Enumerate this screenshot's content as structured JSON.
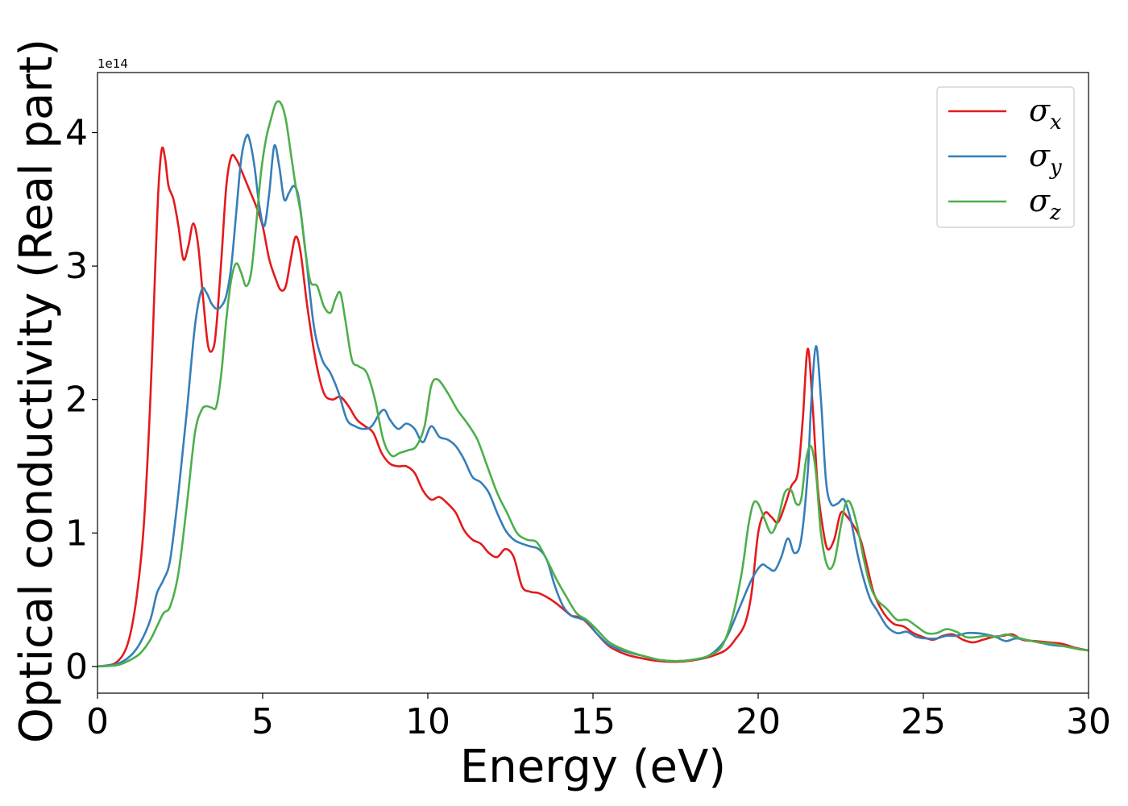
{
  "chart_data": {
    "type": "line",
    "xlabel": "Energy (eV)",
    "ylabel": "Optical conductivity (Real part)",
    "y_offset_label": "1e14",
    "xlim": [
      0,
      30
    ],
    "ylim": [
      -0.2,
      4.45
    ],
    "xticks": [
      0,
      5,
      10,
      15,
      20,
      25,
      30
    ],
    "xtick_labels": [
      "0",
      "5",
      "10",
      "15",
      "20",
      "25",
      "30"
    ],
    "yticks": [
      0,
      1,
      2,
      3,
      4
    ],
    "ytick_labels": [
      "0",
      "1",
      "2",
      "3",
      "4"
    ],
    "grid": false,
    "legend_position": "top-right",
    "series": [
      {
        "name": "σ",
        "subscript": "x",
        "color": "#e41a1c",
        "x": [
          0,
          0.5,
          0.8,
          1.0,
          1.2,
          1.4,
          1.6,
          1.75,
          1.85,
          1.95,
          2.05,
          2.15,
          2.3,
          2.45,
          2.6,
          2.75,
          2.9,
          3.05,
          3.2,
          3.35,
          3.5,
          3.6,
          3.75,
          3.9,
          4.05,
          4.2,
          4.35,
          4.55,
          4.8,
          5.0,
          5.2,
          5.4,
          5.55,
          5.7,
          5.85,
          6.0,
          6.15,
          6.35,
          6.6,
          6.85,
          7.1,
          7.35,
          7.6,
          7.85,
          8.1,
          8.35,
          8.6,
          8.85,
          9.1,
          9.35,
          9.6,
          9.85,
          10.1,
          10.35,
          10.6,
          10.85,
          11.1,
          11.35,
          11.6,
          11.85,
          12.1,
          12.35,
          12.6,
          12.85,
          13.1,
          13.35,
          13.6,
          13.85,
          14.1,
          14.35,
          14.6,
          14.85,
          15.1,
          15.5,
          16,
          16.5,
          17,
          17.5,
          18,
          18.5,
          19,
          19.3,
          19.6,
          19.8,
          20.0,
          20.2,
          20.4,
          20.6,
          20.8,
          21.0,
          21.2,
          21.35,
          21.5,
          21.65,
          21.8,
          21.95,
          22.1,
          22.3,
          22.5,
          22.7,
          22.9,
          23.1,
          23.3,
          23.5,
          23.8,
          24.1,
          24.4,
          24.7,
          25.0,
          25.3,
          25.6,
          25.9,
          26.2,
          26.5,
          26.8,
          27.1,
          27.4,
          27.7,
          28.0,
          28.4,
          28.8,
          29.2,
          29.6,
          30.0
        ],
        "y": [
          0,
          0.02,
          0.1,
          0.25,
          0.55,
          1.05,
          2.0,
          3.0,
          3.6,
          3.88,
          3.8,
          3.6,
          3.5,
          3.3,
          3.05,
          3.15,
          3.32,
          3.15,
          2.75,
          2.4,
          2.38,
          2.55,
          3.05,
          3.6,
          3.82,
          3.8,
          3.72,
          3.6,
          3.45,
          3.3,
          3.05,
          2.9,
          2.82,
          2.85,
          3.05,
          3.22,
          3.1,
          2.7,
          2.3,
          2.05,
          2.0,
          2.02,
          1.95,
          1.85,
          1.8,
          1.75,
          1.6,
          1.52,
          1.5,
          1.5,
          1.45,
          1.32,
          1.25,
          1.27,
          1.22,
          1.15,
          1.02,
          0.95,
          0.92,
          0.85,
          0.82,
          0.88,
          0.82,
          0.6,
          0.56,
          0.55,
          0.52,
          0.48,
          0.43,
          0.38,
          0.37,
          0.32,
          0.25,
          0.15,
          0.09,
          0.06,
          0.04,
          0.035,
          0.045,
          0.07,
          0.12,
          0.2,
          0.32,
          0.55,
          1.0,
          1.15,
          1.12,
          1.08,
          1.2,
          1.35,
          1.45,
          1.85,
          2.38,
          1.95,
          1.35,
          1.05,
          0.88,
          0.95,
          1.15,
          1.12,
          1.05,
          0.95,
          0.75,
          0.55,
          0.4,
          0.32,
          0.3,
          0.25,
          0.22,
          0.2,
          0.23,
          0.24,
          0.2,
          0.18,
          0.2,
          0.22,
          0.23,
          0.24,
          0.2,
          0.19,
          0.18,
          0.17,
          0.14,
          0.12
        ]
      },
      {
        "name": "σ",
        "subscript": "y",
        "color": "#377eb8",
        "x": [
          0,
          0.6,
          1.0,
          1.3,
          1.6,
          1.8,
          2.0,
          2.2,
          2.45,
          2.7,
          2.95,
          3.15,
          3.3,
          3.45,
          3.6,
          3.75,
          3.9,
          4.05,
          4.2,
          4.35,
          4.5,
          4.6,
          4.75,
          4.9,
          5.05,
          5.2,
          5.35,
          5.5,
          5.65,
          5.8,
          5.95,
          6.1,
          6.3,
          6.55,
          6.8,
          7.05,
          7.3,
          7.55,
          7.8,
          8.05,
          8.3,
          8.55,
          8.7,
          8.85,
          9.1,
          9.35,
          9.6,
          9.85,
          10.1,
          10.35,
          10.6,
          10.85,
          11.1,
          11.35,
          11.6,
          11.85,
          12.1,
          12.35,
          12.6,
          12.85,
          13.1,
          13.35,
          13.6,
          13.85,
          14.1,
          14.35,
          14.6,
          14.85,
          15.1,
          15.5,
          16,
          16.5,
          17,
          17.5,
          18,
          18.5,
          19,
          19.4,
          19.8,
          20.1,
          20.3,
          20.5,
          20.7,
          20.9,
          21.1,
          21.3,
          21.5,
          21.6,
          21.75,
          21.9,
          22.05,
          22.2,
          22.4,
          22.6,
          22.8,
          23.0,
          23.2,
          23.4,
          23.6,
          23.9,
          24.2,
          24.5,
          24.8,
          25.1,
          25.4,
          25.7,
          26.0,
          26.3,
          26.6,
          26.9,
          27.2,
          27.5,
          27.8,
          28.1,
          28.5,
          28.9,
          29.3,
          29.7,
          30.0
        ],
        "y": [
          0,
          0.02,
          0.08,
          0.18,
          0.35,
          0.55,
          0.65,
          0.8,
          1.3,
          1.9,
          2.55,
          2.82,
          2.8,
          2.72,
          2.68,
          2.7,
          2.78,
          3.0,
          3.4,
          3.8,
          3.97,
          3.95,
          3.75,
          3.45,
          3.3,
          3.55,
          3.9,
          3.75,
          3.5,
          3.55,
          3.6,
          3.5,
          3.1,
          2.55,
          2.3,
          2.2,
          2.05,
          1.85,
          1.8,
          1.78,
          1.8,
          1.9,
          1.92,
          1.85,
          1.78,
          1.82,
          1.78,
          1.68,
          1.8,
          1.72,
          1.7,
          1.65,
          1.55,
          1.42,
          1.38,
          1.3,
          1.15,
          1.02,
          0.95,
          0.92,
          0.9,
          0.88,
          0.8,
          0.6,
          0.45,
          0.38,
          0.36,
          0.33,
          0.25,
          0.16,
          0.11,
          0.08,
          0.05,
          0.04,
          0.05,
          0.08,
          0.2,
          0.42,
          0.65,
          0.76,
          0.74,
          0.72,
          0.82,
          0.96,
          0.85,
          0.95,
          1.45,
          1.95,
          2.4,
          2.0,
          1.4,
          1.22,
          1.22,
          1.25,
          1.1,
          0.85,
          0.65,
          0.5,
          0.42,
          0.3,
          0.25,
          0.26,
          0.22,
          0.21,
          0.21,
          0.23,
          0.23,
          0.25,
          0.25,
          0.24,
          0.22,
          0.19,
          0.21,
          0.2,
          0.18,
          0.16,
          0.15,
          0.13,
          0.12
        ]
      },
      {
        "name": "σ",
        "subscript": "z",
        "color": "#4daf4a",
        "x": [
          0,
          0.6,
          1.0,
          1.3,
          1.6,
          1.8,
          2.0,
          2.2,
          2.45,
          2.7,
          2.95,
          3.15,
          3.3,
          3.45,
          3.6,
          3.75,
          3.9,
          4.05,
          4.2,
          4.35,
          4.5,
          4.65,
          4.8,
          4.95,
          5.1,
          5.25,
          5.4,
          5.55,
          5.7,
          5.85,
          6.0,
          6.15,
          6.3,
          6.45,
          6.65,
          6.85,
          7.05,
          7.2,
          7.35,
          7.5,
          7.7,
          7.9,
          8.15,
          8.4,
          8.65,
          8.9,
          9.15,
          9.4,
          9.65,
          9.9,
          10.1,
          10.3,
          10.6,
          10.9,
          11.2,
          11.5,
          11.8,
          12.1,
          12.4,
          12.7,
          13.0,
          13.3,
          13.6,
          13.9,
          14.2,
          14.5,
          14.8,
          15.1,
          15.5,
          16,
          16.5,
          17,
          17.5,
          18,
          18.5,
          18.9,
          19.2,
          19.5,
          19.7,
          19.85,
          20.0,
          20.2,
          20.4,
          20.6,
          20.8,
          21.0,
          21.15,
          21.3,
          21.45,
          21.6,
          21.75,
          21.9,
          22.1,
          22.3,
          22.5,
          22.65,
          22.8,
          23.0,
          23.2,
          23.4,
          23.6,
          23.9,
          24.2,
          24.5,
          24.8,
          25.1,
          25.4,
          25.7,
          26.0,
          26.3,
          26.6,
          26.9,
          27.2,
          27.5,
          27.8,
          28.1,
          28.5,
          28.9,
          29.3,
          29.7,
          30.0
        ],
        "y": [
          0,
          0.01,
          0.05,
          0.1,
          0.2,
          0.3,
          0.4,
          0.45,
          0.7,
          1.2,
          1.75,
          1.92,
          1.95,
          1.94,
          1.95,
          2.2,
          2.6,
          2.9,
          3.02,
          2.95,
          2.85,
          2.95,
          3.3,
          3.7,
          3.95,
          4.1,
          4.22,
          4.22,
          4.1,
          3.85,
          3.6,
          3.4,
          3.1,
          2.88,
          2.85,
          2.7,
          2.65,
          2.75,
          2.8,
          2.6,
          2.3,
          2.25,
          2.2,
          2.0,
          1.7,
          1.58,
          1.6,
          1.62,
          1.65,
          1.8,
          2.1,
          2.15,
          2.05,
          1.92,
          1.82,
          1.7,
          1.5,
          1.3,
          1.15,
          1.0,
          0.95,
          0.93,
          0.8,
          0.65,
          0.52,
          0.4,
          0.35,
          0.28,
          0.18,
          0.12,
          0.08,
          0.05,
          0.04,
          0.05,
          0.08,
          0.15,
          0.35,
          0.7,
          1.05,
          1.22,
          1.22,
          1.1,
          1.0,
          1.1,
          1.3,
          1.32,
          1.22,
          1.25,
          1.55,
          1.65,
          1.45,
          1.0,
          0.75,
          0.78,
          1.05,
          1.22,
          1.22,
          1.05,
          0.8,
          0.6,
          0.5,
          0.43,
          0.35,
          0.35,
          0.3,
          0.25,
          0.25,
          0.28,
          0.26,
          0.22,
          0.22,
          0.23,
          0.22,
          0.24,
          0.22,
          0.2,
          0.18,
          0.17,
          0.15,
          0.13,
          0.12
        ]
      }
    ]
  }
}
